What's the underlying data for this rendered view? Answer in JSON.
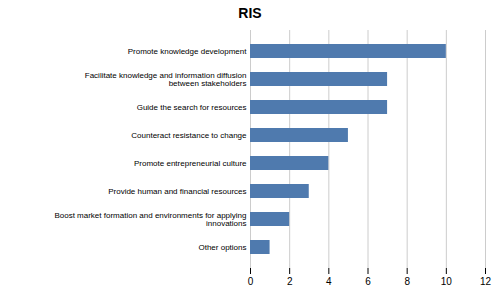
{
  "chart_data": {
    "type": "bar",
    "orientation": "horizontal",
    "title": "RIS",
    "categories": [
      "Other options",
      "Boost market formation and environments for applying\ninnovations",
      "Provide human and financial resources",
      "Promote entrepreneurial culture",
      "Counteract resistance to change",
      "Guide the search for resources",
      "Facilitate knowledge and information diffusion\nbetween stakeholders",
      "Promote knowledge development"
    ],
    "values": [
      1,
      2,
      3,
      4,
      5,
      7,
      7,
      10
    ],
    "color": "#4f7aae",
    "xlim": [
      0,
      12
    ],
    "xticks": [
      0,
      2,
      4,
      6,
      8,
      10,
      12
    ],
    "grid": true
  }
}
